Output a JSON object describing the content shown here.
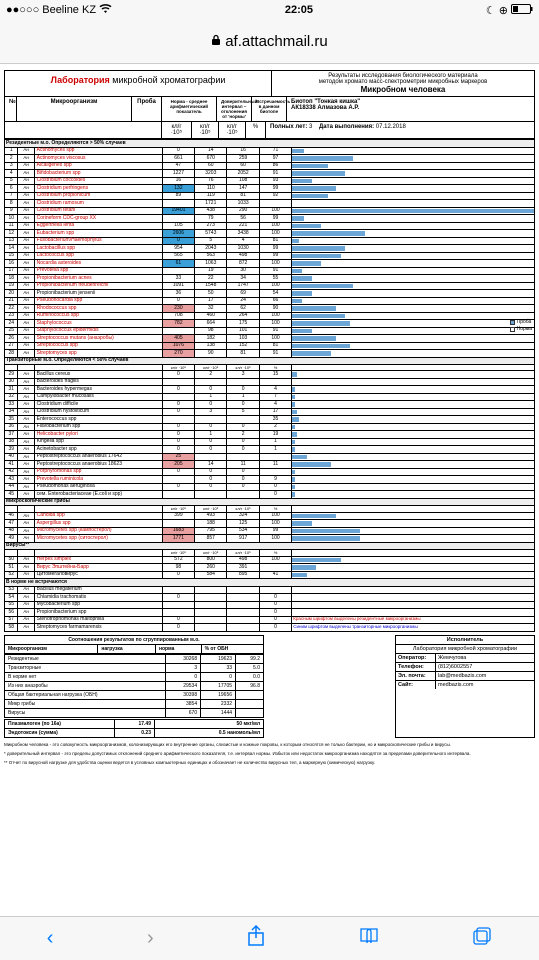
{
  "status": {
    "carrier": "Beeline KZ",
    "time": "22:05",
    "signal": "●●○○○",
    "wifi": "📶",
    "moon": "☾",
    "rot": "⟳",
    "batt": "□"
  },
  "url": {
    "lock": "🔒",
    "host": "af.attachmail.ru"
  },
  "header": {
    "lab_red": "Лаборатория",
    "lab_rest": " микробной хроматографии",
    "r1": "Результаты исследования биологического материала",
    "r2": "методом хромато масс-спектрометрии микробных маркеров",
    "r3": "Микробном человека",
    "biotop": "Биотоп \"Тонкая кишка\"",
    "patient": "АК18338 Алмазова А.Р.",
    "age_lbl": "Полных лет:",
    "age": "3",
    "date_lbl": "Дата выполнения:",
    "date": "07.12.2018"
  },
  "cols": {
    "n": "№",
    "org": "Микроорганизм",
    "probe": "Проба",
    "c1": "Норма - среднее арифметический показатель",
    "c2": "Доверительный интервал – отклонения от 'нормы'",
    "c3": "Встречаемость в данном биотопе",
    "u": "кл/г ·10⁵"
  },
  "sections": [
    {
      "title": "Резидентные м.о. Определяются > 50% случаев",
      "rows": [
        {
          "n": 1,
          "name": "Actinomyces spp",
          "red": 1,
          "v": [
            0,
            14,
            16,
            71
          ],
          "bar": 5
        },
        {
          "n": 2,
          "name": "Actinomyces viscosus",
          "red": 1,
          "v": [
            661,
            670,
            259,
            97
          ],
          "bar": 25
        },
        {
          "n": 3,
          "name": "Alcaligenes spp",
          "red": 1,
          "v": [
            47,
            60,
            60,
            86
          ],
          "bar": 15
        },
        {
          "n": 4,
          "name": "Bifidobacterium spp",
          "red": 1,
          "v": [
            1227,
            3203,
            2052,
            91
          ],
          "bar": 22
        },
        {
          "n": 5,
          "name": "Clostridium coccoides",
          "red": 1,
          "v": [
            16,
            76,
            108,
            93
          ],
          "bar": 8
        },
        {
          "n": 6,
          "name": "Clostridium perfringens",
          "red": 1,
          "v": [
            132,
            110,
            147,
            99
          ],
          "bar": 18,
          "blue": 1
        },
        {
          "n": 7,
          "name": "Clostridium propionicum",
          "red": 1,
          "v": [
            89,
            119,
            81,
            92
          ],
          "bar": 15
        },
        {
          "n": 8,
          "name": "Clostridium ramosum",
          "red": 1,
          "v": [
            "",
            1721,
            1033,
            ""
          ],
          "bar": 0
        },
        {
          "n": 9,
          "name": "Clostridium tetani",
          "red": 1,
          "v": [
            19401,
            438,
            290,
            100
          ],
          "bar": 100,
          "blue": 1
        },
        {
          "n": 10,
          "name": "Corineform CDC-group XX",
          "red": 1,
          "v": [
            "",
            79,
            56,
            99
          ],
          "bar": 5
        },
        {
          "n": 11,
          "name": "Eggerthella lenta",
          "red": 1,
          "v": [
            105,
            273,
            221,
            100
          ],
          "bar": 12
        },
        {
          "n": 12,
          "name": "Eubacterium spp",
          "red": 1,
          "v": [
            2606,
            5743,
            3438,
            100
          ],
          "bar": 30,
          "blue": 1
        },
        {
          "n": 13,
          "name": "Fusobacterium/Haemophylus",
          "red": 1,
          "v": [
            0,
            5,
            4,
            81
          ],
          "bar": 3,
          "blue": 1
        },
        {
          "n": 14,
          "name": "Lactobacillus spp",
          "red": 1,
          "v": [
            954,
            2043,
            1030,
            99
          ],
          "bar": 22
        },
        {
          "n": 15,
          "name": "Lactococcus spp",
          "red": 1,
          "v": [
            565,
            563,
            498,
            99
          ],
          "bar": 20
        },
        {
          "n": 16,
          "name": "Nocardia asteroides",
          "red": 1,
          "v": [
            61,
            1063,
            872,
            100
          ],
          "bar": 12,
          "blue": 1
        },
        {
          "n": 17,
          "name": "Prevotella spp",
          "red": 1,
          "v": [
            "",
            19,
            30,
            91
          ],
          "bar": 4
        },
        {
          "n": 18,
          "name": "Propionibacterium acnes",
          "red": 1,
          "v": [
            33,
            22,
            34,
            55
          ],
          "bar": 8
        },
        {
          "n": 19,
          "name": "Propionibacterium freudenreichii",
          "red": 1,
          "v": [
            1091,
            1548,
            1747,
            100
          ],
          "bar": 25
        },
        {
          "n": 20,
          "name": "Propionibacterium jensenii",
          "v": [
            36,
            50,
            69,
            54
          ],
          "bar": 8
        },
        {
          "n": 21,
          "name": "Pseudonocardia spp",
          "red": 1,
          "v": [
            0,
            17,
            24,
            66
          ],
          "bar": 4
        },
        {
          "n": 22,
          "name": "Rhodococcus spp",
          "red": 1,
          "v": [
            230,
            32,
            62,
            90
          ],
          "bar": 18,
          "pink": 1
        },
        {
          "n": 23,
          "name": "Ruminococcus spp",
          "red": 1,
          "v": [
            708,
            460,
            264,
            100
          ],
          "bar": 22
        },
        {
          "n": 24,
          "name": "Staphylococcus",
          "red": 1,
          "v": [
            782,
            664,
            175,
            100
          ],
          "bar": 24,
          "pink": 1
        },
        {
          "n": 25,
          "name": "Staphylococcus epidermidis",
          "red": 1,
          "v": [
            "",
            98,
            101,
            91
          ],
          "bar": 8
        },
        {
          "n": 26,
          "name": "Streptococcus mutans (анаэробы)",
          "red": 1,
          "v": [
            405,
            182,
            103,
            100
          ],
          "bar": 18,
          "pink": 1
        },
        {
          "n": 27,
          "name": "Streptococcus spp",
          "red": 1,
          "v": [
            1076,
            138,
            152,
            81
          ],
          "bar": 24,
          "pink": 1
        },
        {
          "n": 28,
          "name": "Streptomyces spp",
          "red": 1,
          "v": [
            270,
            90,
            81,
            91
          ],
          "bar": 16,
          "pink": 1
        }
      ]
    },
    {
      "title": "Транзиторные м.о. Определяются < 50% случаев",
      "hdr": 1,
      "rows": [
        {
          "n": 29,
          "name": "Bacillus cereus",
          "v": [
            0,
            2,
            3,
            15
          ],
          "bar": 2
        },
        {
          "n": 30,
          "name": "Bacteroides fragilis",
          "v": [
            "",
            "",
            "",
            ""
          ],
          "bar": 0
        },
        {
          "n": 31,
          "name": "Bacteroides hypermegas",
          "v": [
            0,
            0,
            0,
            4
          ],
          "bar": 1
        },
        {
          "n": 32,
          "name": "Campylobacter mucosalis",
          "v": [
            "",
            1,
            1,
            7
          ],
          "bar": 1
        },
        {
          "n": 33,
          "name": "Clostridium difficile",
          "v": [
            0,
            0,
            0,
            4
          ],
          "bar": 1
        },
        {
          "n": 34,
          "name": "Clostridium hystoliticum",
          "v": [
            0,
            3,
            5,
            17
          ],
          "bar": 2
        },
        {
          "n": 35,
          "name": "Enterococcus spp",
          "v": [
            "",
            "",
            "",
            35
          ],
          "bar": 3
        },
        {
          "n": 36,
          "name": "Flavobacterium spp",
          "v": [
            0,
            0,
            0,
            2
          ],
          "bar": 1
        },
        {
          "n": 37,
          "name": "Helicobacter pylori",
          "red": 1,
          "v": [
            0,
            1,
            2,
            19
          ],
          "bar": 2
        },
        {
          "n": 38,
          "name": "Kingella spp",
          "v": [
            0,
            0,
            0,
            1
          ],
          "bar": 1
        },
        {
          "n": 39,
          "name": "Acinetobacter spp",
          "v": [
            0,
            0,
            0,
            1
          ],
          "bar": 1
        },
        {
          "n": 40,
          "name": "Peptostreptococcus anaerobius 17642",
          "v": [
            25,
            "",
            "",
            ""
          ],
          "bar": 6,
          "pink": 1
        },
        {
          "n": 41,
          "name": "Peptostreptococcus anaerobius 18623",
          "v": [
            205,
            14,
            11,
            11
          ],
          "bar": 16,
          "pink": 1
        },
        {
          "n": 42,
          "name": "Porphyromonas spp",
          "red": 1,
          "v": [
            0,
            0,
            0,
            ""
          ],
          "bar": 1
        },
        {
          "n": 43,
          "name": "Prevotella ruminicola",
          "red": 1,
          "v": [
            "",
            0,
            0,
            9
          ],
          "bar": 1
        },
        {
          "n": 44,
          "name": "Pseudomonas aeruginosa",
          "v": [
            0,
            0,
            0,
            0
          ],
          "bar": 1
        },
        {
          "n": 45,
          "name": "сем. Enterobacteriaceae (E.coli и spp)",
          "v": [
            "",
            "",
            "",
            0
          ],
          "bar": 1
        }
      ]
    },
    {
      "title": "Микроскопические грибы",
      "hdr": 1,
      "rows": [
        {
          "n": 46,
          "name": "Candida spp",
          "red": 1,
          "v": [
            399,
            493,
            324,
            100
          ],
          "bar": 18
        },
        {
          "n": 47,
          "name": "Aspergillus spp",
          "red": 1,
          "v": [
            "",
            188,
            125,
            100
          ],
          "bar": 8
        },
        {
          "n": 48,
          "name": "Micromycetes spp (кампостерол)",
          "red": 1,
          "v": [
            1683,
            795,
            534,
            99
          ],
          "bar": 28,
          "pink": 1
        },
        {
          "n": 49,
          "name": "Micromycetes spp (ситостерол)",
          "red": 1,
          "v": [
            1771,
            857,
            917,
            100
          ],
          "bar": 28,
          "pink": 1
        }
      ]
    },
    {
      "title": "Вирусы**",
      "hdr": 1,
      "rows": [
        {
          "n": 50,
          "name": "Herpes simplex",
          "red": 1,
          "v": [
            572,
            800,
            498,
            100
          ],
          "bar": 20
        },
        {
          "n": 51,
          "name": "Вирус Эпштейна-Барр",
          "red": 1,
          "v": [
            98,
            260,
            391,
            ""
          ],
          "bar": 10
        },
        {
          "n": 52,
          "name": "Цитомегаловирус",
          "v": [
            0,
            584,
            895,
            41
          ],
          "bar": 6
        }
      ]
    },
    {
      "title": "В норме не встречаются",
      "rows": [
        {
          "n": 53,
          "name": "Bacillus megaterium",
          "v": [
            "",
            "",
            "",
            ""
          ],
          "bar": 0
        },
        {
          "n": 54,
          "name": "Chlamidia trachomatis",
          "v": [
            0,
            "",
            "",
            0
          ],
          "bar": 0
        },
        {
          "n": 55,
          "name": "Mycobacterium spp",
          "v": [
            "",
            "",
            "",
            0
          ],
          "bar": 0
        },
        {
          "n": 56,
          "name": "Propionibacterium spp",
          "v": [
            "",
            "",
            "",
            0
          ],
          "bar": 0
        },
        {
          "n": 57,
          "name": "Stenotrophomonas maltophilia",
          "v": [
            0,
            "",
            "",
            0
          ],
          "bar": 0
        },
        {
          "n": 58,
          "name": "Streptomyces farmamarensis",
          "v": [
            0,
            "",
            "",
            0
          ],
          "bar": 0
        }
      ]
    }
  ],
  "red_note": "Красным шрифтом выделены резидентные микроорганизмы",
  "blue_note": "Синим шрифтом выделены транзиторные микроорганизмы",
  "legend": {
    "probe": "Проба",
    "norm": "Норма"
  },
  "summary": {
    "title": "Соотношения результатов по сгруппированным м.о.",
    "cols": [
      "Микроорганизм",
      "нагрузка",
      "норма",
      "% от ОБН"
    ],
    "rows": [
      [
        "Резидентные",
        "30268",
        "19623",
        "99.2"
      ],
      [
        "Транзиторные",
        "3",
        "33",
        "5.0"
      ],
      [
        "В норме нет",
        "0",
        "0",
        "0.0"
      ],
      [
        "Из них анаэробы",
        "29534",
        "17705",
        "96.8"
      ],
      [
        "Общая бактериальная нагрузка (ОБН)",
        "30398",
        "19656",
        ""
      ],
      [
        "Микр грибы",
        "3854",
        "2332",
        ""
      ],
      [
        "Вирусы",
        "670",
        "1444",
        ""
      ]
    ],
    "plasm": [
      "Плазмалоген (по 16а)",
      "17.49",
      "50 мкг/мл"
    ],
    "endo": [
      "Эндотоксин (сумма)",
      "0.23",
      "0.5 наномоль/мл"
    ]
  },
  "exec": {
    "title": "Исполнитель",
    "lab": "Лаборатория микробной хроматографии",
    "rows": [
      [
        "Оператор:",
        "Жемчугова"
      ],
      [
        "Телефон:",
        "(812)6002557"
      ],
      [
        "Эл. почта:",
        "lab@medbazis.com"
      ],
      [
        "Сайт:",
        "medbazis.com"
      ]
    ]
  },
  "footnotes": [
    "Микробном человека - это совокупность микроорганизмов, колонизирующих его внутренние органы, слизистые и кожные покровы, к которым относятся не только бактерии, но и микроскопические грибы и вирусы.",
    "* доверительный интервал - это пределы допустимых отклонений среднего арифметического показателя, т.е. интервал нормы. Избыток или недостаток микроорганизма находятся за пределами доверительного интервала.",
    "** Отчет по вирусной нагрузке для удобства оценки ведется в условных компьютерных единицах и обозначает не количество вирусных тел, а маркерную (химическую) нагрузку."
  ],
  "bottom": {
    "back": "‹",
    "fwd": "›",
    "share": "⬆",
    "books": "▢",
    "tabs": "▢"
  }
}
